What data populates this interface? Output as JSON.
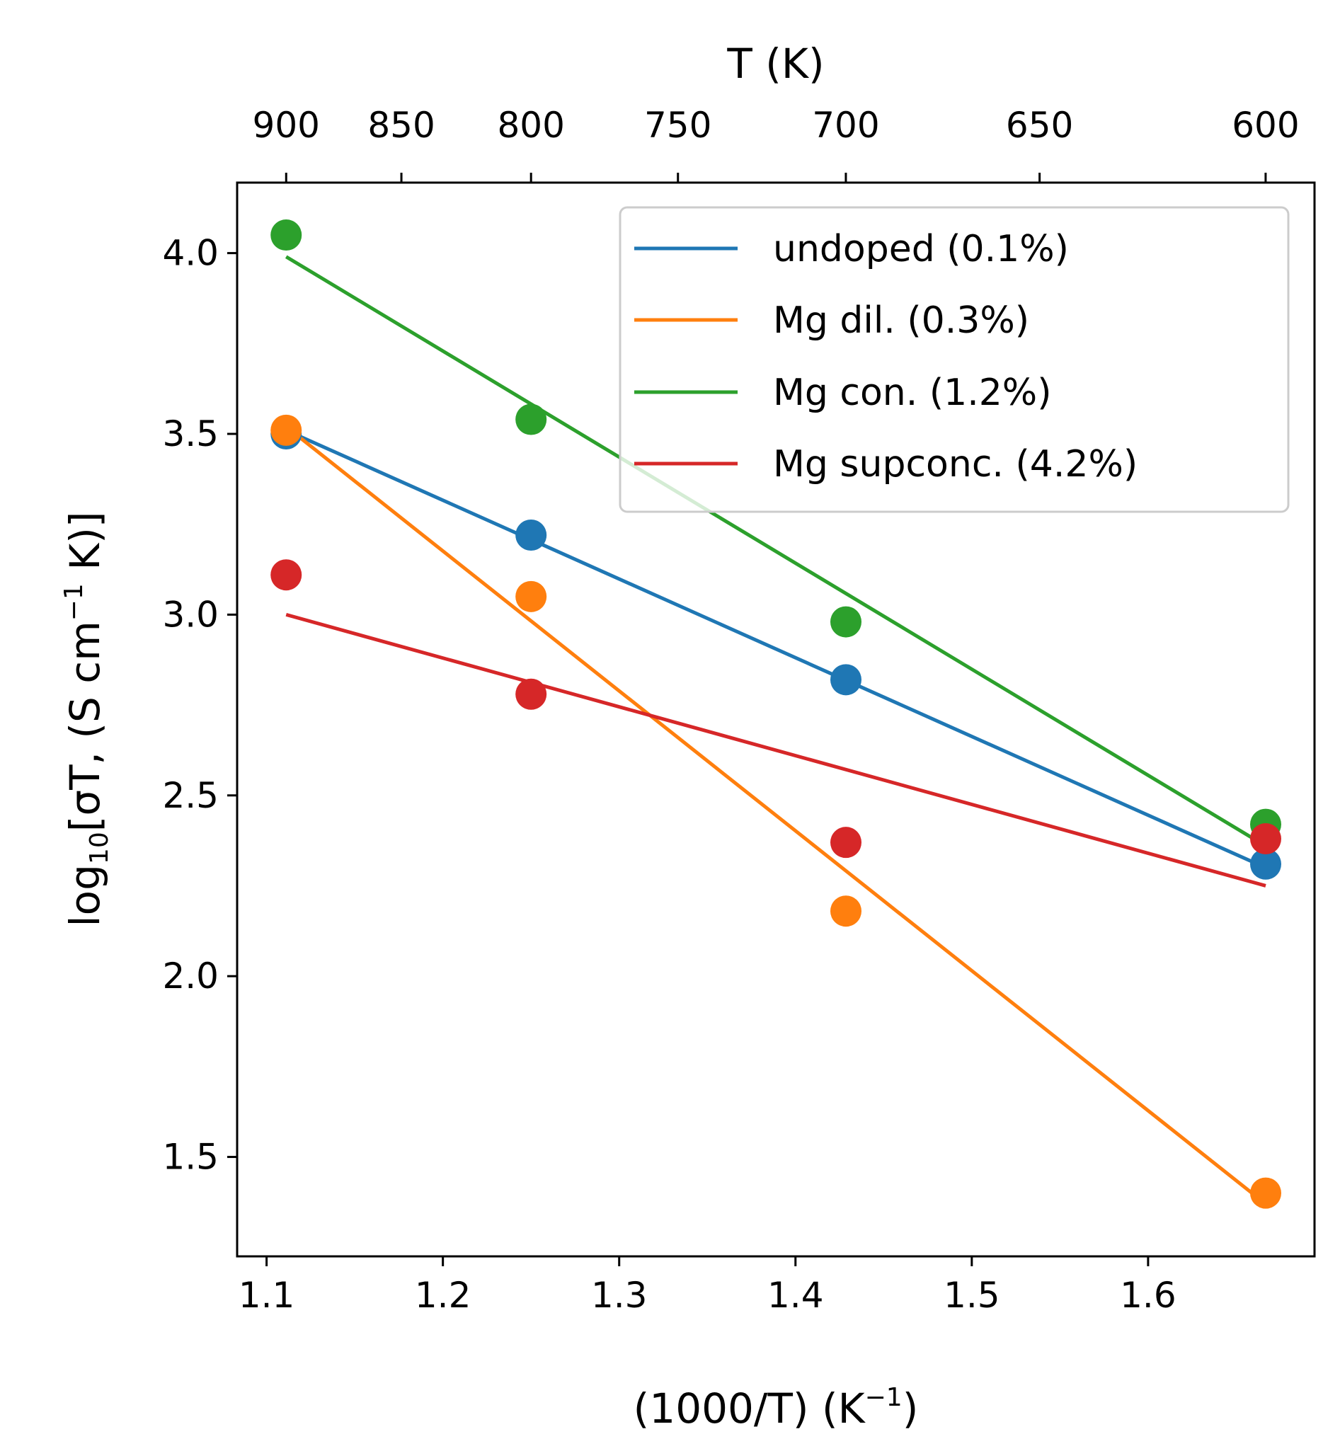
{
  "chart_data": {
    "type": "scatter",
    "xlabel": "(1000/T) (K",
    "xlabel_sup": "−1",
    "xlabel_end": ")",
    "ylabel_pre": "log",
    "ylabel_sub": "10",
    "ylabel_mid": "[σT, (S cm",
    "ylabel_sup": "−1",
    "ylabel_end": " K)]",
    "top_axis_label": "T (K)",
    "xlim": [
      1.0833,
      1.6944
    ],
    "ylim": [
      1.225,
      4.195
    ],
    "x_ticks": [
      1.1,
      1.2,
      1.3,
      1.4,
      1.5,
      1.6
    ],
    "x_tick_labels": [
      "1.1",
      "1.2",
      "1.3",
      "1.4",
      "1.5",
      "1.6"
    ],
    "y_ticks": [
      1.5,
      2.0,
      2.5,
      3.0,
      3.5,
      4.0
    ],
    "y_tick_labels": [
      "1.5",
      "2.0",
      "2.5",
      "3.0",
      "3.5",
      "4.0"
    ],
    "top_ticks_T": [
      900,
      850,
      800,
      750,
      700,
      650,
      600
    ],
    "top_tick_labels": [
      "900",
      "850",
      "800",
      "750",
      "700",
      "650",
      "600"
    ],
    "grid": false,
    "legend_position": "top-right",
    "series": [
      {
        "name": "undoped (0.1%)",
        "color": "#1f77b4",
        "x": [
          1.1111,
          1.25,
          1.4286,
          1.6667
        ],
        "y": [
          3.5,
          3.22,
          2.82,
          2.31
        ],
        "fit": [
          [
            1.1111,
            3.51
          ],
          [
            1.6667,
            2.3
          ]
        ]
      },
      {
        "name": "Mg dil. (0.3%)",
        "color": "#ff7f0e",
        "x": [
          1.1111,
          1.25,
          1.4286,
          1.6667
        ],
        "y": [
          3.51,
          3.05,
          2.18,
          1.4
        ],
        "fit": [
          [
            1.1111,
            3.52
          ],
          [
            1.6667,
            1.37
          ]
        ]
      },
      {
        "name": "Mg con. (1.2%)",
        "color": "#2ca02c",
        "x": [
          1.1111,
          1.25,
          1.4286,
          1.6667
        ],
        "y": [
          4.05,
          3.54,
          2.98,
          2.42
        ],
        "fit": [
          [
            1.1111,
            3.99
          ],
          [
            1.6667,
            2.36
          ]
        ]
      },
      {
        "name": "Mg supconc. (4.2%)",
        "color": "#d62728",
        "x": [
          1.1111,
          1.25,
          1.4286,
          1.6667
        ],
        "y": [
          3.11,
          2.78,
          2.37,
          2.38
        ],
        "fit": [
          [
            1.1111,
            3.0
          ],
          [
            1.6667,
            2.25
          ]
        ]
      }
    ]
  }
}
